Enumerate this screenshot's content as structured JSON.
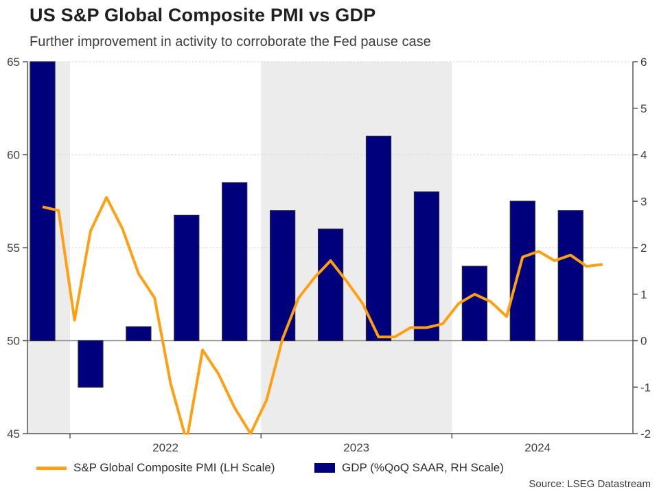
{
  "header": {
    "title": "US S&P Global Composite PMI vs GDP",
    "subtitle": "Further improvement in activity to corroborate the Fed pause case"
  },
  "source": "Source: LSEG Datastream",
  "legend": [
    {
      "label": "S&P Global Composite PMI (LH Scale)",
      "swatch": "line",
      "color": "#FFA014"
    },
    {
      "label": "GDP (%QoQ SAAR, RH Scale)",
      "swatch": "rect",
      "color": "#00007D"
    }
  ],
  "colors": {
    "line": "#FFA014",
    "bar_fill": "#00007D",
    "bar_border": "#23233B",
    "year_shading": "#ECECEC",
    "gridline": "#D8D8D8",
    "zero_line": "#8C8C8C",
    "axis": "#555555",
    "tick_label": "#404040"
  },
  "chart_data": {
    "type": "bar+line combo",
    "title": "US S&P Global Composite PMI vs GDP",
    "subtitle": "Further improvement in activity to corroborate the Fed pause case",
    "left_axis": {
      "label": "S&P Global Composite PMI",
      "range": [
        45,
        65
      ],
      "ticks": [
        65,
        60,
        55,
        50,
        45
      ]
    },
    "right_axis": {
      "label": "GDP %QoQ SAAR",
      "range": [
        -2,
        6
      ],
      "ticks": [
        6,
        5,
        4,
        3,
        2,
        1,
        0,
        -1,
        -2
      ]
    },
    "x_axis": {
      "year_labels": [
        "2022",
        "2023",
        "2024"
      ],
      "shaded_periods": [
        "late 2021",
        "2023"
      ],
      "grid": "dotted horizontal gridlines at left-axis ticks"
    },
    "line_series": {
      "name": "S&P Global Composite PMI (LH Scale)",
      "axis": "left",
      "months": [
        "Nov 2021",
        "Dec 2021",
        "Jan 2022",
        "Feb 2022",
        "Mar 2022",
        "Apr 2022",
        "May 2022",
        "Jun 2022",
        "Jul 2022",
        "Aug 2022",
        "Sep 2022",
        "Oct 2022",
        "Nov 2022",
        "Dec 2022",
        "Jan 2023",
        "Feb 2023",
        "Mar 2023",
        "Apr 2023",
        "May 2023",
        "Jun 2023",
        "Jul 2023",
        "Aug 2023",
        "Sep 2023",
        "Oct 2023",
        "Nov 2023",
        "Dec 2023",
        "Jan 2024",
        "Feb 2024",
        "Mar 2024",
        "Apr 2024",
        "May 2024",
        "Jun 2024",
        "Jul 2024",
        "Aug 2024",
        "Sep 2024",
        "Oct 2024"
      ],
      "values": [
        57.2,
        57.0,
        51.1,
        55.9,
        57.7,
        56.0,
        53.6,
        52.3,
        47.7,
        44.6,
        49.5,
        48.2,
        46.4,
        45.0,
        46.8,
        50.1,
        52.3,
        53.4,
        54.3,
        53.2,
        52.0,
        50.2,
        50.2,
        50.7,
        50.7,
        50.9,
        52.0,
        52.5,
        52.1,
        51.3,
        54.5,
        54.8,
        54.3,
        54.6,
        54.0,
        54.1
      ],
      "note": "Aug 2022 dip is clipped at the 45 axis floor"
    },
    "bar_series": {
      "name": "GDP (%QoQ SAAR, RH Scale)",
      "axis": "right",
      "quarters": [
        "2021 Q4",
        "2022 Q1",
        "2022 Q2",
        "2022 Q3",
        "2022 Q4",
        "2023 Q1",
        "2023 Q2",
        "2023 Q3",
        "2023 Q4",
        "2024 Q1",
        "2024 Q2",
        "2024 Q3"
      ],
      "values": [
        6.0,
        -1.0,
        0.3,
        2.7,
        3.4,
        2.8,
        2.4,
        4.4,
        3.2,
        1.6,
        3.0,
        2.8
      ],
      "note": "2021 Q4 bar reaches the +6 top of the chart (clipped at axis maximum)"
    }
  }
}
